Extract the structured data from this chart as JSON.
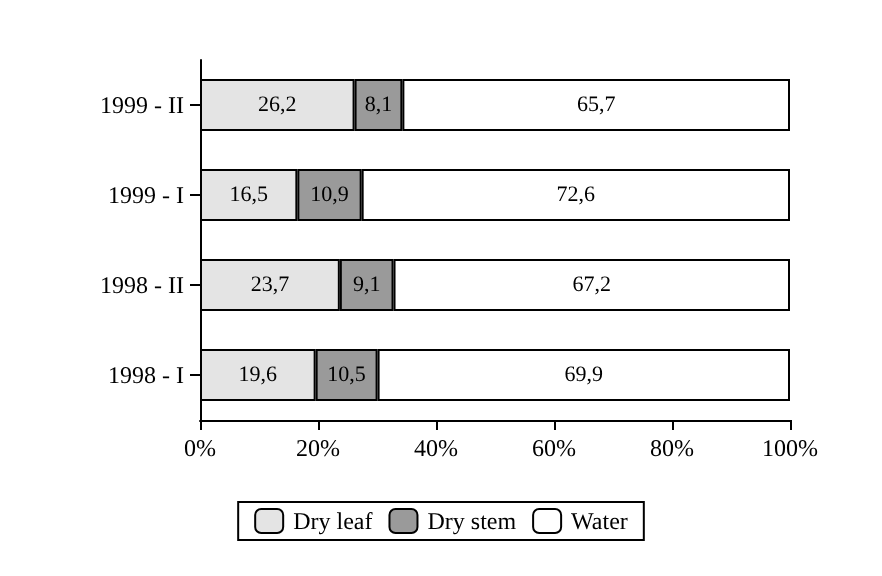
{
  "chart_data": {
    "type": "bar",
    "orientation": "horizontal",
    "stacked": true,
    "categories": [
      "1999 - II",
      "1999 - I",
      "1998 - II",
      "1998 - I"
    ],
    "series": [
      {
        "name": "Dry leaf",
        "color": "#e4e4e4",
        "values": [
          26.2,
          16.5,
          23.7,
          19.6
        ],
        "value_labels": [
          "26,2",
          "16,5",
          "23,7",
          "19,6"
        ]
      },
      {
        "name": "Dry stem",
        "color": "#9a9a9a",
        "values": [
          8.1,
          10.9,
          9.1,
          10.5
        ],
        "value_labels": [
          "8,1",
          "10,9",
          "9,1",
          "10,5"
        ]
      },
      {
        "name": "Water",
        "color": "#ffffff",
        "values": [
          65.7,
          72.6,
          67.2,
          69.9
        ],
        "value_labels": [
          "65,7",
          "72,6",
          "67,2",
          "69,9"
        ]
      }
    ],
    "xlim": [
      0,
      100
    ],
    "xticks": [
      {
        "value": 0,
        "label": "0%"
      },
      {
        "value": 20,
        "label": "20%"
      },
      {
        "value": 40,
        "label": "40%"
      },
      {
        "value": 60,
        "label": "60%"
      },
      {
        "value": 80,
        "label": "80%"
      },
      {
        "value": 100,
        "label": "100%"
      }
    ],
    "legend": "bottom",
    "grid": false
  }
}
